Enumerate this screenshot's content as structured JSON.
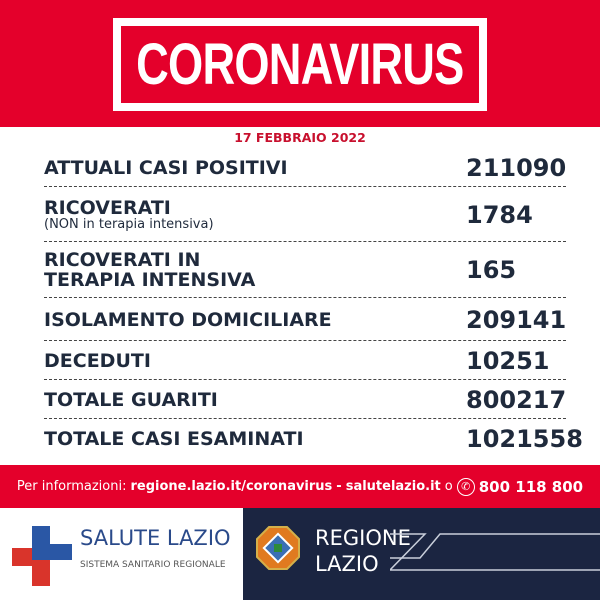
{
  "header": {
    "title": "CORONAVIRUS",
    "date": "17 FEBBRAIO 2022"
  },
  "rows": [
    {
      "label": "ATTUALI CASI POSITIVI",
      "value": "211090"
    },
    {
      "label": "RICOVERATI",
      "sub": "(NON in terapia intensiva)",
      "value": "1784"
    },
    {
      "label": "RICOVERATI IN",
      "label2": "TERAPIA INTENSIVA",
      "value": "165"
    },
    {
      "label": "ISOLAMENTO DOMICILIARE",
      "value": "209141"
    },
    {
      "label": "DECEDUTI",
      "value": "10251"
    },
    {
      "label": "TOTALE GUARITI",
      "value": "800217"
    },
    {
      "label": "TOTALE CASI ESAMINATI",
      "value": "1021558"
    }
  ],
  "info": {
    "prefix": "Per informazioni:",
    "link1": "regione.lazio.it/coronavirus",
    "sep": "-",
    "link2": "salutelazio.it",
    "or": "o",
    "phone": "800 118 800",
    "phone_icon": "phone-icon"
  },
  "logos": {
    "salute_title": "SALUTE LAZIO",
    "salute_sub": "SISTEMA SANITARIO REGIONALE",
    "regione_line1": "REGIONE",
    "regione_line2": "LAZIO"
  },
  "colors": {
    "red": "#e4002b",
    "navy": "#1b2541",
    "text": "#1f2a3c"
  }
}
